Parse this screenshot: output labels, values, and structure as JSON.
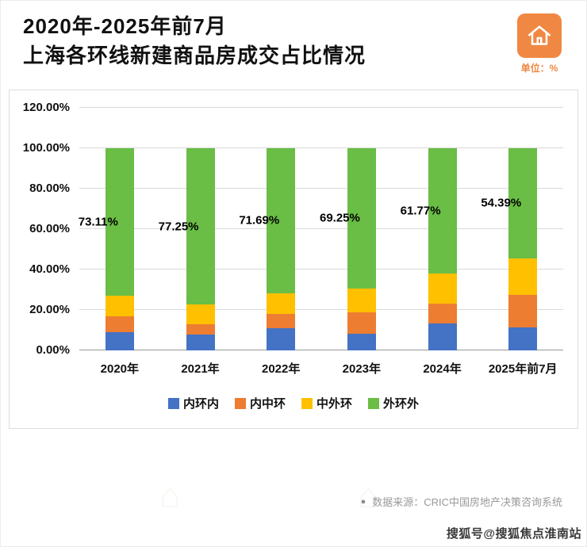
{
  "header": {
    "title_line1": "2020年-2025年前7月",
    "title_line2": "上海各环线新建商品房成交占比情况",
    "unit_label": "单位：%",
    "accent_color": "#f08843"
  },
  "icons": {
    "house_watermark": "⌂"
  },
  "chart_data": {
    "type": "bar",
    "stacked": true,
    "title": "2020年-2025年前7月上海各环线新建商品房成交占比情况",
    "categories": [
      "2020年",
      "2021年",
      "2022年",
      "2023年",
      "2024年",
      "2025年前7月"
    ],
    "series": [
      {
        "name": "内环内",
        "color": "#4472c4",
        "values": [
          9.2,
          7.8,
          11.0,
          8.1,
          13.2,
          11.3
        ]
      },
      {
        "name": "内中环",
        "color": "#ed7d31",
        "values": [
          7.7,
          5.2,
          7.0,
          10.9,
          9.8,
          16.0
        ]
      },
      {
        "name": "中外环",
        "color": "#ffc000",
        "values": [
          9.99,
          9.75,
          10.31,
          11.75,
          15.23,
          18.31
        ]
      },
      {
        "name": "外环外",
        "color": "#6abd45",
        "values": [
          73.11,
          77.25,
          71.69,
          69.25,
          61.77,
          54.39
        ]
      }
    ],
    "data_labels": [
      "73.11%",
      "77.25%",
      "71.69%",
      "69.25%",
      "61.77%",
      "54.39%"
    ],
    "ylim": [
      0,
      120
    ],
    "yticks": [
      "0.00%",
      "20.00%",
      "40.00%",
      "60.00%",
      "80.00%",
      "100.00%",
      "120.00%"
    ],
    "grid": true,
    "legend_position": "bottom"
  },
  "footer": {
    "bullet": "●",
    "source": "数据来源：CRIC中国房地产决策咨询系统"
  },
  "watermark": {
    "text": "搜狐号@搜狐焦点淮南站"
  }
}
